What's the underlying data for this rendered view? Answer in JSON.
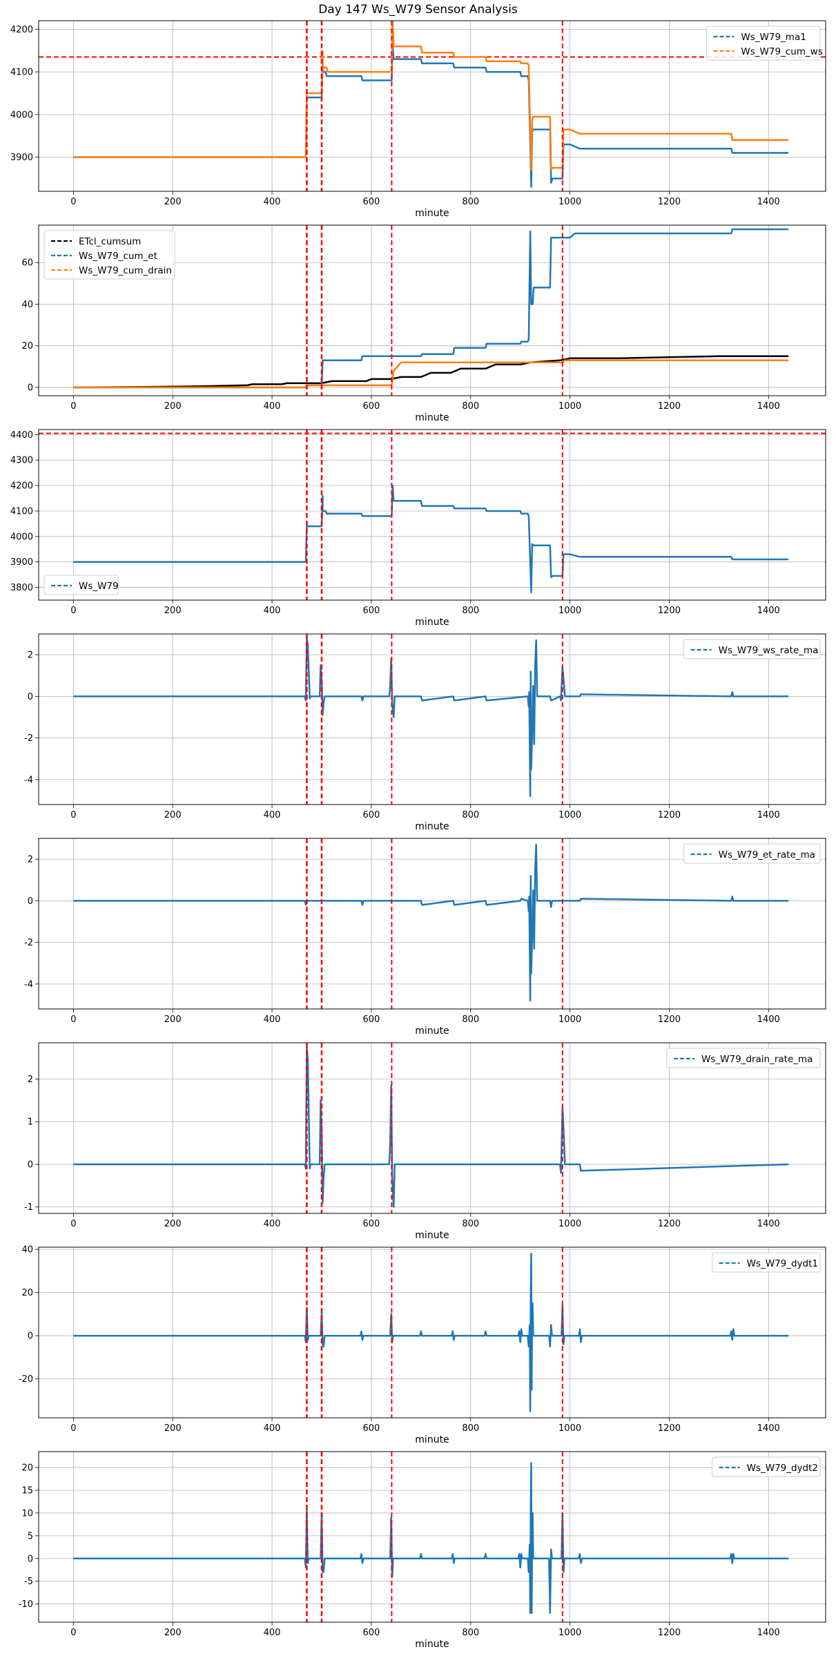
{
  "title": "Day 147 Ws_W79 Sensor Analysis",
  "colors": {
    "blue": "#1f77b4",
    "orange": "#ff7f0e",
    "black": "#000000",
    "red": "#ff0000",
    "grid": "#b0b0b0"
  },
  "event_lines_minutes": [
    470,
    500,
    641,
    985
  ],
  "chart_data": [
    {
      "type": "line",
      "xlabel": "minute",
      "xlim": [
        -70,
        1515
      ],
      "xticks": [
        0,
        200,
        400,
        600,
        800,
        1000,
        1200,
        1400
      ],
      "ylim": [
        3820,
        4220
      ],
      "yticks": [
        3900,
        4000,
        4100,
        4200
      ],
      "legend": "top-right",
      "hline": 4135,
      "series": [
        {
          "name": "Ws_W79_ma1",
          "color": "#1f77b4",
          "width": 2.5,
          "x": [
            0,
            468,
            470,
            500,
            502,
            502,
            508,
            510,
            580,
            582,
            641,
            643,
            645,
            700,
            702,
            765,
            767,
            830,
            832,
            900,
            902,
            915,
            917,
            922,
            924,
            926,
            960,
            962,
            965,
            985,
            987,
            1000,
            1020,
            1022,
            1325,
            1327,
            1440
          ],
          "y": [
            3900,
            3900,
            4040,
            4040,
            4120,
            4100,
            4100,
            4090,
            4090,
            4080,
            4080,
            4160,
            4130,
            4130,
            4120,
            4120,
            4110,
            4110,
            4100,
            4100,
            4090,
            4090,
            4080,
            3830,
            3960,
            3965,
            3965,
            3840,
            3850,
            3850,
            3930,
            3930,
            3920,
            3920,
            3920,
            3910,
            3910
          ]
        },
        {
          "name": "Ws_W79_cum_ws",
          "color": "#ff7f0e",
          "width": 2.5,
          "x": [
            0,
            468,
            470,
            500,
            502,
            502,
            510,
            512,
            580,
            582,
            641,
            643,
            645,
            700,
            702,
            765,
            767,
            830,
            832,
            900,
            902,
            915,
            917,
            922,
            924,
            926,
            960,
            962,
            965,
            985,
            987,
            1000,
            1020,
            1022,
            1325,
            1327,
            1440
          ],
          "y": [
            3900,
            3900,
            4050,
            4050,
            4150,
            4110,
            4110,
            4100,
            4100,
            4100,
            4100,
            4220,
            4160,
            4160,
            4145,
            4145,
            4135,
            4135,
            4125,
            4125,
            4120,
            4120,
            4115,
            3870,
            3990,
            3995,
            3995,
            3870,
            3875,
            3875,
            3965,
            3965,
            3955,
            3955,
            3955,
            3940,
            3940
          ]
        }
      ]
    },
    {
      "type": "line",
      "xlabel": "minute",
      "xlim": [
        -70,
        1515
      ],
      "xticks": [
        0,
        200,
        400,
        600,
        800,
        1000,
        1200,
        1400
      ],
      "ylim": [
        -4,
        78
      ],
      "yticks": [
        0,
        20,
        40,
        60
      ],
      "legend": "top-left",
      "series": [
        {
          "name": "ETcl_cumsum",
          "color": "#000000",
          "width": 2.5,
          "x": [
            0,
            150,
            250,
            350,
            360,
            420,
            430,
            500,
            520,
            590,
            600,
            640,
            660,
            700,
            720,
            760,
            780,
            830,
            850,
            900,
            920,
            980,
            1000,
            1100,
            1200,
            1300,
            1440
          ],
          "y": [
            0,
            0.2,
            0.5,
            1,
            1.5,
            1.5,
            2,
            2,
            3,
            3,
            4,
            4,
            5,
            5,
            7,
            7,
            9,
            9,
            11,
            11,
            12,
            13,
            14,
            14,
            14.5,
            15,
            15
          ]
        },
        {
          "name": "Ws_W79_cum_et",
          "color": "#1f77b4",
          "width": 2.5,
          "x": [
            0,
            468,
            470,
            500,
            502,
            580,
            582,
            700,
            702,
            765,
            767,
            830,
            832,
            900,
            902,
            915,
            917,
            920,
            922,
            925,
            927,
            960,
            962,
            1000,
            1010,
            1325,
            1327,
            1440
          ],
          "y": [
            0,
            0,
            1,
            1,
            13,
            13,
            15,
            15,
            16,
            16,
            19,
            19,
            21,
            21,
            22,
            22,
            23,
            75,
            40,
            40,
            48,
            48,
            72,
            72,
            74,
            74,
            76,
            76
          ]
        },
        {
          "name": "Ws_W79_cum_drain",
          "color": "#ff7f0e",
          "width": 2.5,
          "x": [
            0,
            468,
            470,
            500,
            502,
            641,
            645,
            660,
            985,
            990,
            1440
          ],
          "y": [
            0,
            0,
            1,
            1,
            1,
            1,
            8,
            12,
            12,
            13,
            13
          ]
        }
      ]
    },
    {
      "type": "line",
      "xlabel": "minute",
      "xlim": [
        -70,
        1515
      ],
      "xticks": [
        0,
        200,
        400,
        600,
        800,
        1000,
        1200,
        1400
      ],
      "ylim": [
        3750,
        4420
      ],
      "yticks": [
        3800,
        3900,
        4000,
        4100,
        4200,
        4300,
        4400
      ],
      "legend": "bottom-left",
      "hline": 4405,
      "series": [
        {
          "name": "Ws_W79",
          "color": "#1f77b4",
          "width": 2.5,
          "x": [
            0,
            468,
            470,
            500,
            502,
            502,
            508,
            510,
            580,
            582,
            641,
            643,
            645,
            700,
            702,
            765,
            767,
            830,
            832,
            900,
            902,
            915,
            917,
            922,
            924,
            926,
            960,
            962,
            965,
            985,
            987,
            1000,
            1020,
            1022,
            1325,
            1327,
            1440
          ],
          "y": [
            3900,
            3900,
            4040,
            4040,
            4160,
            4100,
            4100,
            4090,
            4090,
            4080,
            4080,
            4200,
            4140,
            4140,
            4120,
            4120,
            4110,
            4110,
            4100,
            4100,
            4090,
            4090,
            4080,
            3780,
            3970,
            3965,
            3965,
            3840,
            3845,
            3845,
            3930,
            3930,
            3920,
            3920,
            3920,
            3910,
            3910
          ]
        }
      ]
    },
    {
      "type": "line",
      "xlabel": "minute",
      "xlim": [
        -70,
        1515
      ],
      "xticks": [
        0,
        200,
        400,
        600,
        800,
        1000,
        1200,
        1400
      ],
      "ylim": [
        -5.2,
        3.0
      ],
      "yticks": [
        -4,
        -2,
        0,
        2
      ],
      "legend": "top-right",
      "series": [
        {
          "name": "Ws_W79_ws_rate_ma",
          "color": "#1f77b4",
          "width": 2.5,
          "x": [
            0,
            466,
            468,
            470,
            472,
            474,
            476,
            478,
            496,
            498,
            500,
            502,
            504,
            506,
            580,
            582,
            584,
            636,
            638,
            640,
            642,
            645,
            647,
            700,
            702,
            765,
            767,
            830,
            832,
            915,
            917,
            918,
            920,
            921,
            922,
            924,
            926,
            928,
            930,
            932,
            934,
            960,
            962,
            980,
            982,
            985,
            987,
            990,
            1020,
            1022,
            1325,
            1327,
            1329,
            1440
          ],
          "y": [
            0,
            0,
            -0.2,
            2.8,
            2.5,
            1.2,
            -0.1,
            0,
            0,
            1.5,
            0.8,
            -0.9,
            -0.3,
            0,
            0,
            -0.2,
            0,
            0,
            0.5,
            1.8,
            -0.3,
            -1,
            0,
            0,
            -0.2,
            0,
            -0.2,
            0,
            -0.2,
            0,
            -0.5,
            0.2,
            -4.8,
            1.2,
            -3.5,
            -1.8,
            0.5,
            -2.3,
            1.5,
            2.7,
            0,
            0,
            -0.2,
            0,
            -0.2,
            1.4,
            0.9,
            0,
            0,
            0.1,
            0,
            0.2,
            0,
            0
          ]
        }
      ]
    },
    {
      "type": "line",
      "xlabel": "minute",
      "xlim": [
        -70,
        1515
      ],
      "xticks": [
        0,
        200,
        400,
        600,
        800,
        1000,
        1200,
        1400
      ],
      "ylim": [
        -5.2,
        3.0
      ],
      "yticks": [
        -4,
        -2,
        0,
        2
      ],
      "legend": "top-right",
      "series": [
        {
          "name": "Ws_W79_et_rate_ma",
          "color": "#1f77b4",
          "width": 2.5,
          "x": [
            0,
            466,
            468,
            470,
            580,
            582,
            584,
            700,
            702,
            765,
            767,
            830,
            832,
            900,
            902,
            915,
            917,
            918,
            920,
            921,
            922,
            924,
            926,
            928,
            930,
            932,
            934,
            960,
            962,
            964,
            1020,
            1022,
            1325,
            1327,
            1329,
            1440
          ],
          "y": [
            0,
            0,
            -0.2,
            0,
            0,
            -0.2,
            0,
            0,
            -0.2,
            0,
            -0.2,
            0,
            -0.2,
            0,
            0.1,
            0,
            -0.5,
            0.2,
            -4.8,
            1.2,
            -3.5,
            -1.8,
            0.5,
            -2.3,
            1.5,
            2.7,
            0,
            0,
            -0.3,
            0,
            0,
            0.1,
            0,
            0.2,
            0,
            0
          ]
        }
      ]
    },
    {
      "type": "line",
      "xlabel": "minute",
      "xlim": [
        -70,
        1515
      ],
      "xticks": [
        0,
        200,
        400,
        600,
        800,
        1000,
        1200,
        1400
      ],
      "ylim": [
        -1.15,
        2.85
      ],
      "yticks": [
        -1,
        0,
        1,
        2
      ],
      "legend": "top-right",
      "series": [
        {
          "name": "Ws_W79_drain_rate_ma",
          "color": "#1f77b4",
          "width": 2.5,
          "x": [
            0,
            466,
            468,
            470,
            472,
            474,
            476,
            478,
            496,
            498,
            500,
            502,
            504,
            506,
            636,
            638,
            640,
            642,
            645,
            647,
            980,
            982,
            985,
            987,
            990,
            1020,
            1022,
            1440
          ],
          "y": [
            0,
            0,
            -0.1,
            2.75,
            2.5,
            1.2,
            -0.1,
            0,
            0,
            1.5,
            0.8,
            -0.9,
            -0.3,
            0,
            0,
            0.5,
            1.85,
            -0.3,
            -1,
            0,
            0,
            -0.2,
            1.35,
            0.9,
            0,
            0,
            -0.15,
            0
          ]
        }
      ]
    },
    {
      "type": "line",
      "xlabel": "minute",
      "xlim": [
        -70,
        1515
      ],
      "xticks": [
        0,
        200,
        400,
        600,
        800,
        1000,
        1200,
        1400
      ],
      "ylim": [
        -38,
        41
      ],
      "yticks": [
        -20,
        0,
        20,
        40
      ],
      "legend": "top-right",
      "series": [
        {
          "name": "Ws_W79_dydt1",
          "color": "#1f77b4",
          "width": 2.5,
          "x": [
            0,
            466,
            468,
            470,
            472,
            474,
            498,
            500,
            502,
            504,
            506,
            578,
            580,
            582,
            584,
            638,
            640,
            642,
            644,
            698,
            700,
            702,
            762,
            764,
            766,
            768,
            828,
            830,
            832,
            896,
            898,
            900,
            902,
            904,
            915,
            917,
            919,
            920,
            921,
            922,
            923,
            924,
            925,
            926,
            958,
            960,
            962,
            964,
            983,
            985,
            987,
            989,
            1018,
            1020,
            1022,
            1024,
            1323,
            1325,
            1327,
            1329,
            1331,
            1440
          ],
          "y": [
            0,
            0,
            -3,
            13,
            -2,
            0,
            0,
            11,
            -4,
            -5,
            0,
            0,
            2,
            -2,
            0,
            0,
            10,
            -3,
            0,
            0,
            2,
            0,
            0,
            2,
            -2,
            0,
            0,
            2,
            0,
            0,
            2,
            -3,
            3,
            0,
            0,
            -5,
            5,
            -35,
            20,
            38,
            -25,
            10,
            15,
            0,
            0,
            -5,
            5,
            0,
            0,
            14,
            -4,
            0,
            0,
            3,
            -3,
            0,
            0,
            2,
            -2,
            3,
            0,
            0
          ]
        }
      ]
    },
    {
      "type": "line",
      "xlabel": "minute",
      "xlim": [
        -70,
        1515
      ],
      "xticks": [
        0,
        200,
        400,
        600,
        800,
        1000,
        1200,
        1400
      ],
      "ylim": [
        -14,
        23.5
      ],
      "yticks": [
        -10,
        -5,
        0,
        5,
        10,
        15,
        20
      ],
      "legend": "top-right",
      "series": [
        {
          "name": "Ws_W79_dydt2",
          "color": "#1f77b4",
          "width": 2.5,
          "x": [
            0,
            466,
            468,
            470,
            472,
            474,
            498,
            500,
            502,
            504,
            506,
            578,
            580,
            582,
            584,
            638,
            640,
            642,
            644,
            698,
            700,
            702,
            762,
            764,
            766,
            768,
            828,
            830,
            832,
            896,
            898,
            900,
            902,
            904,
            915,
            917,
            919,
            920,
            921,
            922,
            923,
            924,
            925,
            926,
            958,
            960,
            962,
            964,
            983,
            985,
            987,
            989,
            1018,
            1020,
            1022,
            1024,
            1323,
            1325,
            1327,
            1329,
            1331,
            1440
          ],
          "y": [
            0,
            0,
            -2,
            11,
            -1,
            0,
            0,
            10,
            -3,
            -3,
            0,
            0,
            1,
            -1,
            0,
            0,
            9,
            -4,
            0,
            0,
            1,
            0,
            0,
            1,
            -1,
            0,
            0,
            1,
            0,
            0,
            1,
            -2,
            1,
            0,
            0,
            -3,
            3,
            -12,
            12,
            21,
            -12,
            5,
            10,
            0,
            0,
            -12,
            2,
            0,
            0,
            10,
            -3,
            0,
            0,
            1,
            -1,
            0,
            0,
            1,
            -1,
            1,
            0,
            0
          ]
        }
      ]
    }
  ]
}
